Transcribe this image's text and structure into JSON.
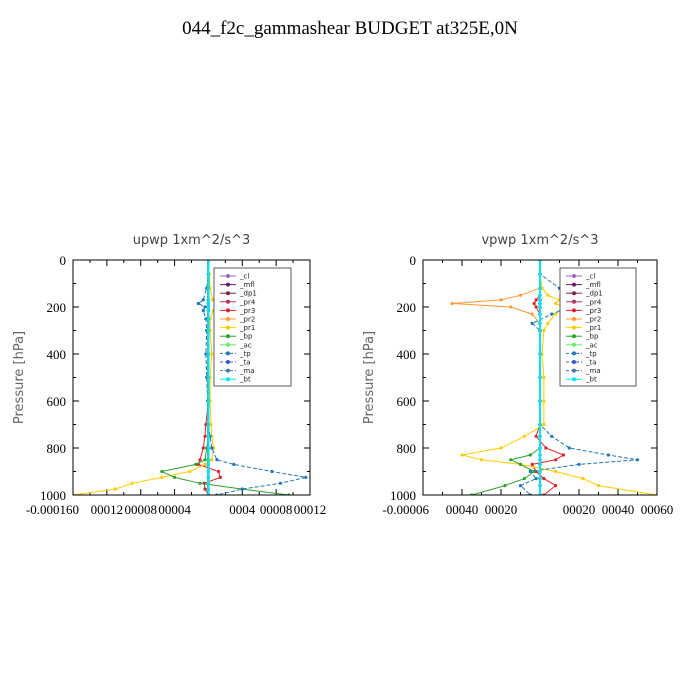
{
  "title": "044_f2c_gammashear  BUDGET at325E,0N",
  "chart_data": [
    {
      "type": "line",
      "title": "upwp   1xm^2/s^3",
      "ylabel": "Pressure [hPa]",
      "xlabel": "",
      "xlim": [
        -0.00016,
        0.00012
      ],
      "ylim": [
        1000,
        0
      ],
      "y_ticks": [
        0,
        200,
        400,
        600,
        800,
        1000
      ],
      "y_tick_labels": [
        "0",
        "200",
        "400",
        "600",
        "800",
        "1000"
      ],
      "x_ticks": [
        -0.00016,
        -0.00012,
        -8e-05,
        -4e-05,
        0,
        4e-05,
        8e-05,
        0.00012
      ],
      "x_tick_labels": [
        "-0.00016",
        "-0.00012",
        "-0.00008",
        "-0.00004",
        "0",
        "0.00004",
        "0.00008",
        "0.00012"
      ],
      "x_tick_labels_display": [
        "-0.000160",
        "00012",
        "00008",
        "00004",
        "",
        "0004",
        "00008",
        "00012"
      ],
      "pressure": [
        0,
        60,
        120,
        170,
        185,
        200,
        215,
        250,
        300,
        400,
        500,
        600,
        700,
        750,
        800,
        850,
        870,
        900,
        925,
        950,
        975,
        1000
      ],
      "series": [
        {
          "name": "_cl",
          "color": "#9966cc",
          "values": [
            0,
            0,
            0,
            0,
            0,
            0,
            0,
            0,
            0,
            0,
            0,
            0,
            0,
            0,
            0,
            0,
            0,
            0,
            0,
            0,
            0,
            0
          ]
        },
        {
          "name": "_mfl",
          "color": "#6b1b6b",
          "values": [
            0,
            0,
            0,
            0,
            0,
            0,
            0,
            0,
            0,
            0,
            0,
            0,
            0,
            0,
            0,
            0,
            0,
            0,
            0,
            0,
            0,
            0
          ]
        },
        {
          "name": "_dp1",
          "color": "#7a1f4a",
          "values": [
            0,
            0,
            0,
            0,
            0,
            0,
            0,
            0,
            0,
            0,
            0,
            0,
            0,
            0,
            0,
            0,
            0,
            0,
            0,
            0,
            0,
            0
          ]
        },
        {
          "name": "_pr4",
          "color": "#b03060",
          "values": [
            0,
            0,
            0,
            0,
            0,
            0,
            0,
            0,
            0,
            0,
            0,
            0,
            0,
            0,
            0,
            0,
            0,
            0,
            0,
            0,
            0,
            0
          ]
        },
        {
          "name": "_pr3",
          "color": "#e0202a",
          "values": [
            0,
            0,
            0,
            0,
            0,
            0,
            0,
            0,
            0,
            0,
            0,
            0,
            -3e-06,
            -4e-06,
            -6e-06,
            -1e-05,
            -1.2e-05,
            1.2e-05,
            1.4e-05,
            -5e-06,
            -4e-06,
            0
          ]
        },
        {
          "name": "_pr2",
          "color": "#ff9933",
          "values": [
            0,
            0,
            0,
            0,
            0,
            0,
            0,
            0,
            0,
            0,
            0,
            0,
            0,
            0,
            0,
            0,
            0,
            0,
            0,
            0,
            0,
            0
          ]
        },
        {
          "name": "_pr1",
          "color": "#ffcc00",
          "values": [
            0,
            1e-06,
            2e-06,
            5e-06,
            1.2e-05,
            1.4e-05,
            6e-06,
            2e-06,
            2e-06,
            4e-06,
            2e-06,
            2e-06,
            3e-06,
            4e-06,
            6e-06,
            4e-06,
            -4e-06,
            -2.2e-05,
            -5.5e-05,
            -9e-05,
            -0.00011,
            -0.00016
          ]
        },
        {
          "name": "_bp",
          "color": "#2ca02c",
          "values": [
            0,
            0,
            0,
            0,
            0,
            0,
            0,
            0,
            0,
            0,
            0,
            0,
            0,
            0,
            -2e-06,
            -4e-06,
            -1.5e-05,
            -5.5e-05,
            -4e-05,
            -1e-05,
            4e-05,
            9.5e-05
          ]
        },
        {
          "name": "_ac",
          "color": "#66ee66",
          "values": [
            0,
            0,
            0,
            0,
            0,
            0,
            0,
            0,
            0,
            0,
            0,
            0,
            0,
            0,
            0,
            0,
            0,
            0,
            0,
            0,
            0,
            0
          ]
        },
        {
          "name": "_tp",
          "color": "#1f77b4",
          "values": [
            0,
            0,
            -2e-06,
            -6e-06,
            -1.2e-05,
            -4e-06,
            -6e-06,
            -3e-06,
            -2e-06,
            -3e-06,
            -2e-06,
            -1e-06,
            0,
            2e-06,
            4e-06,
            1e-05,
            3e-05,
            7.5e-05,
            0.000115,
            8.5e-05,
            4e-05,
            1e-05
          ]
        },
        {
          "name": "_ta",
          "color": "#3355cc",
          "values": [
            0,
            0,
            0,
            0,
            0,
            0,
            0,
            0,
            0,
            0,
            0,
            0,
            0,
            0,
            0,
            0,
            0,
            0,
            0,
            0,
            0,
            0
          ]
        },
        {
          "name": "_ma",
          "color": "#4477aa",
          "values": [
            0,
            0,
            0,
            0,
            0,
            0,
            0,
            0,
            0,
            0,
            0,
            0,
            0,
            0,
            0,
            0,
            0,
            0,
            0,
            0,
            0,
            0
          ]
        },
        {
          "name": "_bt",
          "color": "#00e5ee",
          "values": [
            0,
            0,
            0,
            0,
            0,
            0,
            0,
            0,
            0,
            0,
            0,
            0,
            0,
            0,
            0,
            0,
            0,
            0,
            0,
            0,
            0,
            0
          ]
        }
      ]
    },
    {
      "type": "line",
      "title": "vpwp   1xm^2/s^3",
      "ylabel": "Pressure [hPa]",
      "xlabel": "",
      "xlim": [
        -6e-05,
        6e-05
      ],
      "ylim": [
        1000,
        0
      ],
      "y_ticks": [
        0,
        200,
        400,
        600,
        800,
        1000
      ],
      "y_tick_labels": [
        "0",
        "200",
        "400",
        "600",
        "800",
        "1000"
      ],
      "x_ticks": [
        -6e-05,
        -4e-05,
        -2e-05,
        0,
        2e-05,
        4e-05,
        6e-05
      ],
      "x_tick_labels": [
        "-0.00006",
        "-0.00004",
        "-0.00002",
        "0",
        "0.00002",
        "0.00004",
        "0.00006"
      ],
      "x_tick_labels_display": [
        "-0.00006",
        "00040",
        "00020",
        "",
        "00020",
        "00040",
        "00060"
      ],
      "pressure": [
        0,
        60,
        120,
        150,
        170,
        185,
        200,
        230,
        270,
        300,
        400,
        500,
        600,
        700,
        750,
        800,
        830,
        850,
        870,
        900,
        930,
        960,
        1000
      ],
      "series": [
        {
          "name": "_cl",
          "color": "#9966cc",
          "values": [
            0,
            0,
            0,
            0,
            0,
            0,
            0,
            0,
            0,
            0,
            0,
            0,
            0,
            0,
            0,
            0,
            0,
            0,
            0,
            0,
            0,
            0,
            0
          ]
        },
        {
          "name": "_mfl",
          "color": "#6b1b6b",
          "values": [
            0,
            0,
            0,
            0,
            0,
            0,
            0,
            0,
            0,
            0,
            0,
            0,
            0,
            0,
            0,
            0,
            0,
            0,
            0,
            0,
            0,
            0,
            0
          ]
        },
        {
          "name": "_dp1",
          "color": "#7a1f4a",
          "values": [
            0,
            0,
            0,
            0,
            0,
            0,
            0,
            0,
            0,
            0,
            0,
            0,
            0,
            0,
            0,
            0,
            0,
            0,
            0,
            0,
            0,
            0,
            0
          ]
        },
        {
          "name": "_pr4",
          "color": "#b03060",
          "values": [
            0,
            0,
            0,
            0,
            0,
            0,
            0,
            0,
            0,
            0,
            0,
            0,
            0,
            0,
            0,
            0,
            0,
            0,
            0,
            0,
            0,
            0,
            0
          ]
        },
        {
          "name": "_pr3",
          "color": "#e0202a",
          "values": [
            0,
            0,
            0,
            0,
            -2e-06,
            -3e-06,
            -2e-06,
            0,
            0,
            0,
            0,
            0,
            0,
            0,
            -2e-06,
            3e-06,
            1.2e-05,
            8e-06,
            -4e-06,
            -2e-06,
            2e-06,
            8e-06,
            2e-06
          ]
        },
        {
          "name": "_pr2",
          "color": "#ff9933",
          "values": [
            0,
            0,
            0,
            -1e-05,
            -2e-05,
            -4.5e-05,
            -1.5e-05,
            -4e-06,
            0,
            0,
            0,
            0,
            0,
            0,
            0,
            0,
            0,
            0,
            0,
            0,
            0,
            0,
            0
          ]
        },
        {
          "name": "_pr1",
          "color": "#ffcc00",
          "values": [
            0,
            0,
            1e-06,
            4e-06,
            1e-05,
            8e-06,
            1.2e-05,
            8e-06,
            4e-06,
            2e-06,
            1e-06,
            2e-06,
            2e-06,
            2e-06,
            -8e-06,
            -2e-05,
            -4e-05,
            -3e-05,
            -1e-05,
            8e-06,
            2.2e-05,
            3e-05,
            6e-05
          ]
        },
        {
          "name": "_bp",
          "color": "#2ca02c",
          "values": [
            0,
            0,
            0,
            0,
            0,
            0,
            0,
            0,
            0,
            0,
            0,
            0,
            0,
            0,
            0,
            0,
            -5e-06,
            -1.5e-05,
            -1e-05,
            -3e-06,
            -8e-06,
            -1.8e-05,
            -3.5e-05
          ]
        },
        {
          "name": "_ac",
          "color": "#66ee66",
          "values": [
            0,
            0,
            0,
            0,
            0,
            0,
            0,
            0,
            0,
            0,
            0,
            0,
            0,
            0,
            0,
            0,
            0,
            0,
            0,
            0,
            0,
            0,
            0
          ]
        },
        {
          "name": "_tp",
          "color": "#1f77b4",
          "values": [
            0,
            0,
            1e-05,
            2.2e-05,
            2e-05,
            1.2e-05,
            1.5e-05,
            6e-06,
            -4e-06,
            0,
            0,
            0,
            0,
            0,
            6e-06,
            1.5e-05,
            3.5e-05,
            5e-05,
            2e-05,
            -5e-06,
            -2e-06,
            -1e-05,
            -5e-06
          ]
        },
        {
          "name": "_ta",
          "color": "#3355cc",
          "values": [
            0,
            0,
            0,
            0,
            0,
            0,
            0,
            0,
            0,
            0,
            0,
            0,
            0,
            0,
            0,
            0,
            0,
            0,
            0,
            0,
            0,
            0,
            0
          ]
        },
        {
          "name": "_ma",
          "color": "#4477aa",
          "values": [
            0,
            0,
            0,
            0,
            0,
            0,
            0,
            0,
            0,
            0,
            0,
            0,
            0,
            0,
            0,
            0,
            0,
            0,
            0,
            0,
            0,
            0,
            0
          ]
        },
        {
          "name": "_bt",
          "color": "#00e5ee",
          "values": [
            0,
            0,
            0,
            0,
            0,
            0,
            0,
            0,
            0,
            0,
            0,
            0,
            0,
            0,
            0,
            0,
            0,
            0,
            0,
            0,
            0,
            0,
            0
          ]
        }
      ]
    }
  ]
}
